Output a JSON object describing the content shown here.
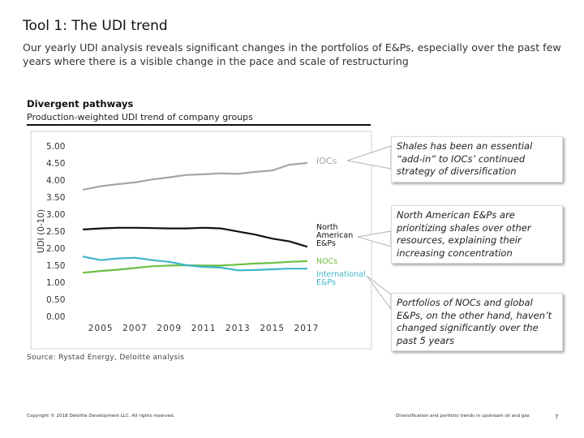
{
  "slide": {
    "title": "Tool 1: The UDI trend",
    "subtitle": "Our yearly UDI analysis reveals significant changes in the portfolios of E&Ps, especially over the past few years where there is a visible change in the pace and scale of restructuring"
  },
  "chart_data": {
    "type": "line",
    "title": "Divergent pathways",
    "subtitle": "Production-weighted UDI trend of company groups",
    "xlabel": "",
    "ylabel": "UDI (0-10)",
    "x": [
      2004,
      2005,
      2006,
      2007,
      2008,
      2009,
      2010,
      2011,
      2012,
      2013,
      2014,
      2015,
      2016,
      2017
    ],
    "xlim": [
      2004,
      2017
    ],
    "x_ticks": [
      2005,
      2007,
      2009,
      2011,
      2013,
      2015,
      2017
    ],
    "x_tick_labels": [
      "2005",
      "2007",
      "2009",
      "2011",
      "2013",
      "2015",
      "2017"
    ],
    "ylim": [
      0,
      5
    ],
    "y_ticks": [
      0,
      0.5,
      1,
      1.5,
      2,
      2.5,
      3,
      3.5,
      4,
      4.5,
      5
    ],
    "y_tick_labels": [
      "0.00",
      "0.50",
      "1.00",
      "1.50",
      "2.00",
      "2.50",
      "3.00",
      "3.50",
      "4.00",
      "4.50",
      "5.00"
    ],
    "grid": false,
    "series": [
      {
        "name": "IOCs",
        "label_lines": [
          "IOCs"
        ],
        "color": "#a6a6a6",
        "values": [
          3.72,
          3.82,
          3.88,
          3.93,
          4.02,
          4.08,
          4.15,
          4.17,
          4.2,
          4.18,
          4.24,
          4.28,
          4.45,
          4.5
        ]
      },
      {
        "name": "North American E&Ps",
        "label_lines": [
          "North",
          "American",
          "E&Ps"
        ],
        "color": "#111111",
        "values": [
          2.55,
          2.58,
          2.6,
          2.6,
          2.59,
          2.58,
          2.58,
          2.6,
          2.58,
          2.49,
          2.4,
          2.28,
          2.2,
          2.05
        ]
      },
      {
        "name": "NOCs",
        "label_lines": [
          "NOCs"
        ],
        "color": "#6bbf45",
        "values": [
          1.28,
          1.33,
          1.37,
          1.42,
          1.47,
          1.49,
          1.5,
          1.49,
          1.49,
          1.52,
          1.55,
          1.57,
          1.6,
          1.62
        ]
      },
      {
        "name": "International E&Ps",
        "label_lines": [
          "International",
          "E&Ps"
        ],
        "color": "#3fb6c8",
        "values": [
          1.75,
          1.65,
          1.7,
          1.72,
          1.65,
          1.6,
          1.5,
          1.45,
          1.43,
          1.35,
          1.36,
          1.38,
          1.4,
          1.4
        ]
      }
    ]
  },
  "callouts": [
    "Shales has been an essential “add-in” to IOCs’ continued strategy of diversification",
    "North American E&Ps are prioritizing shales over other resources, explaining their increasing concentration",
    "Portfolios of NOCs and global E&Ps, on the other hand, haven’t changed significantly over the past 5 years"
  ],
  "source": "Source: Rystad Energy, Deloitte analysis",
  "footer": {
    "copyright": "Copyright © 2018 Deloitte Development LLC. All rights reserved.",
    "doc_title": "Diversification and portfolio trends in upstream oil and gas",
    "page_number": "7"
  },
  "colors": {
    "axis_text": "#333333",
    "callout_border": "#d9d9d9",
    "connector": "#b3b3b3"
  }
}
